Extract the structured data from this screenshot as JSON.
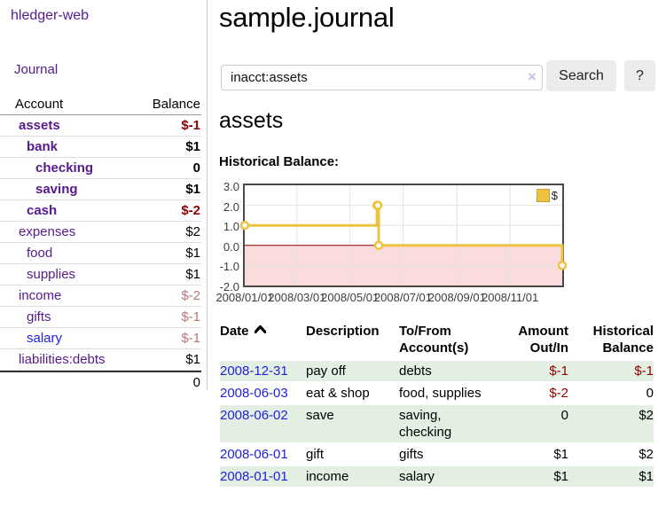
{
  "app": {
    "title": "hledger-web"
  },
  "sidebar": {
    "nav_journal": "Journal",
    "accounts_table": {
      "header_account": "Account",
      "header_balance": "Balance",
      "rows": [
        {
          "account": "assets",
          "balance": "$-1",
          "indent": 1,
          "bold": true,
          "negative": "strong"
        },
        {
          "account": "bank",
          "balance": "$1",
          "indent": 2,
          "bold": true,
          "negative": "none"
        },
        {
          "account": "checking",
          "balance": "0",
          "indent": 3,
          "bold": true,
          "negative": "none"
        },
        {
          "account": "saving",
          "balance": "$1",
          "indent": 3,
          "bold": true,
          "negative": "none"
        },
        {
          "account": "cash",
          "balance": "$-2",
          "indent": 2,
          "bold": true,
          "negative": "strong"
        },
        {
          "account": "expenses",
          "balance": "$2",
          "indent": 1,
          "bold": false,
          "negative": "none"
        },
        {
          "account": "food",
          "balance": "$1",
          "indent": 2,
          "bold": false,
          "negative": "none"
        },
        {
          "account": "supplies",
          "balance": "$1",
          "indent": 2,
          "bold": false,
          "negative": "none"
        },
        {
          "account": "income",
          "balance": "$-2",
          "indent": 1,
          "bold": false,
          "negative": "faded"
        },
        {
          "account": "gifts",
          "balance": "$-1",
          "indent": 2,
          "bold": false,
          "negative": "faded"
        },
        {
          "account": "salary",
          "balance": "$-1",
          "indent": 2,
          "bold": false,
          "negative": "faded",
          "link_style": "blue"
        },
        {
          "account": "liabilities:debts",
          "balance": "$1",
          "indent": 1,
          "bold": false,
          "negative": "none"
        }
      ],
      "total": "0"
    }
  },
  "header": {
    "title": "sample.journal"
  },
  "search": {
    "value": "inacct:assets",
    "clear_icon": "×",
    "button_label": "Search",
    "help_label": "?"
  },
  "account_page": {
    "title": "assets",
    "chart_label": "Historical Balance:"
  },
  "chart_data": {
    "type": "line",
    "step": true,
    "title": "Historical Balance:",
    "legend": [
      {
        "label": "$",
        "color": "#edc240"
      }
    ],
    "legend_position": "top-right",
    "x": [
      "2008-01-01",
      "2008-06-01",
      "2008-06-02",
      "2008-06-03",
      "2008-12-31"
    ],
    "values": [
      1,
      2,
      2,
      0,
      -1
    ],
    "series_name": "$",
    "xrange": [
      "2008-01-01",
      "2008-12-31"
    ],
    "ylim": [
      -2,
      3
    ],
    "yticks": [
      3,
      2,
      1,
      0,
      -1,
      -2
    ],
    "ytick_labels": [
      "3.0",
      "2.0",
      "1.0",
      "0.0",
      "-1.0",
      "-2.0"
    ],
    "xticks": [
      "2008-01-01",
      "2008-03-01",
      "2008-05-01",
      "2008-07-01",
      "2008-09-01",
      "2008-11-01"
    ],
    "xtick_labels": [
      "2008/01/01",
      "2008/03/01",
      "2008/05/01",
      "2008/07/01",
      "2008/09/01",
      "2008/11/01"
    ],
    "grid": true,
    "line_color": "#edc240",
    "marker_fill": "#ffffff",
    "negative_region_color": "#fbdcdc",
    "zero_line_color": "#8b0000",
    "gridline_color": "#e2e2e2"
  },
  "register_table": {
    "headers": {
      "date": "Date",
      "description": "Description",
      "accounts": "To/From\nAccount(s)",
      "amount": "Amount\nOut/In",
      "balance": "Historical\nBalance"
    },
    "rows": [
      {
        "date": "2008-12-31",
        "description": "pay off",
        "accounts": "debts",
        "amount": "$-1",
        "balance": "$-1",
        "amount_negative": true,
        "balance_negative": true,
        "striped": true
      },
      {
        "date": "2008-06-03",
        "description": "eat & shop",
        "accounts": "food, supplies",
        "amount": "$-2",
        "balance": "0",
        "amount_negative": true,
        "balance_negative": false,
        "striped": false
      },
      {
        "date": "2008-06-02",
        "description": "save",
        "accounts": "saving,\nchecking",
        "amount": "0",
        "balance": "$2",
        "amount_negative": false,
        "balance_negative": false,
        "striped": true
      },
      {
        "date": "2008-06-01",
        "description": "gift",
        "accounts": "gifts",
        "amount": "$1",
        "balance": "$2",
        "amount_negative": false,
        "balance_negative": false,
        "striped": false
      },
      {
        "date": "2008-01-01",
        "description": "income",
        "accounts": "salary",
        "amount": "$1",
        "balance": "$1",
        "amount_negative": false,
        "balance_negative": false,
        "striped": true
      }
    ]
  }
}
